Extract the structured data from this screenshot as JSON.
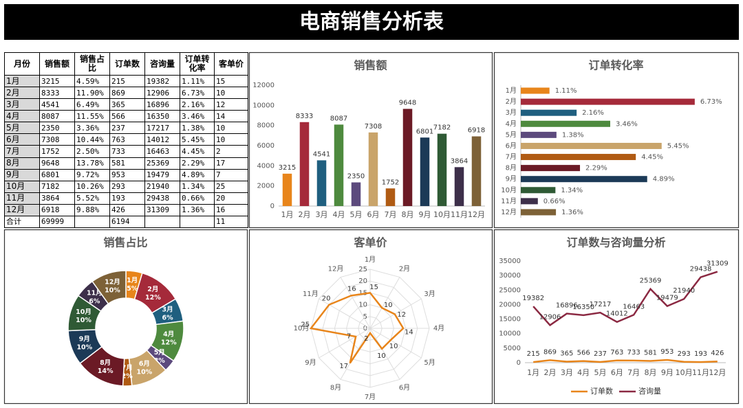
{
  "title": "电商销售分析表",
  "table": {
    "headers": [
      "月份",
      "销售额",
      "销售占比",
      "订单数",
      "咨询量",
      "订单转化率",
      "客单价"
    ],
    "rows": [
      [
        "1月",
        "3215",
        "4.59%",
        "215",
        "19382",
        "1.11%",
        "15"
      ],
      [
        "2月",
        "8333",
        "11.90%",
        "869",
        "12906",
        "6.73%",
        "10"
      ],
      [
        "3月",
        "4541",
        "6.49%",
        "365",
        "16896",
        "2.16%",
        "12"
      ],
      [
        "4月",
        "8087",
        "11.55%",
        "566",
        "16350",
        "3.46%",
        "14"
      ],
      [
        "5月",
        "2350",
        "3.36%",
        "237",
        "17217",
        "1.38%",
        "10"
      ],
      [
        "6月",
        "7308",
        "10.44%",
        "763",
        "14012",
        "5.45%",
        "10"
      ],
      [
        "7月",
        "1752",
        "2.50%",
        "733",
        "16463",
        "4.45%",
        "2"
      ],
      [
        "8月",
        "9648",
        "13.78%",
        "581",
        "25369",
        "2.29%",
        "17"
      ],
      [
        "9月",
        "6801",
        "9.72%",
        "953",
        "19479",
        "4.89%",
        "7"
      ],
      [
        "10月",
        "7182",
        "10.26%",
        "293",
        "21940",
        "1.34%",
        "25"
      ],
      [
        "11月",
        "3864",
        "5.52%",
        "193",
        "29438",
        "0.66%",
        "20"
      ],
      [
        "12月",
        "6918",
        "9.88%",
        "426",
        "31309",
        "1.36%",
        "16"
      ]
    ],
    "total": {
      "label": "合计",
      "sales": "69999",
      "orders": "6194",
      "price": "11"
    }
  },
  "chart_data": [
    {
      "type": "bar",
      "title": "销售额",
      "categories": [
        "1月",
        "2月",
        "3月",
        "4月",
        "5月",
        "6月",
        "7月",
        "8月",
        "9月",
        "10月",
        "11月",
        "12月"
      ],
      "values": [
        3215,
        8333,
        4541,
        8087,
        2350,
        7308,
        1752,
        9648,
        6801,
        7182,
        3864,
        6918
      ],
      "colors": [
        "#e8851b",
        "#a52a3a",
        "#1f5f7f",
        "#4e8a3e",
        "#5c4a7d",
        "#c9a46a",
        "#b05b13",
        "#6b1a25",
        "#1c3a57",
        "#2f5a35",
        "#3d2f4a",
        "#7d6137"
      ],
      "ylim": [
        0,
        12000
      ],
      "yticks": [
        0,
        2000,
        4000,
        6000,
        8000,
        10000,
        12000
      ],
      "grid": false
    },
    {
      "type": "barh",
      "title": "订单转化率",
      "categories": [
        "1月",
        "2月",
        "3月",
        "4月",
        "5月",
        "6月",
        "7月",
        "8月",
        "9月",
        "10月",
        "11月",
        "12月"
      ],
      "values": [
        1.11,
        6.73,
        2.16,
        3.46,
        1.38,
        5.45,
        4.45,
        2.29,
        4.89,
        1.34,
        0.66,
        1.36
      ],
      "value_labels": [
        "1.11%",
        "6.73%",
        "2.16%",
        "3.46%",
        "1.38%",
        "5.45%",
        "4.45%",
        "2.29%",
        "4.89%",
        "1.34%",
        "0.66%",
        "1.36%"
      ],
      "colors": [
        "#e8851b",
        "#a52a3a",
        "#1f5f7f",
        "#4e8a3e",
        "#5c4a7d",
        "#c9a46a",
        "#b05b13",
        "#6b1a25",
        "#1c3a57",
        "#2f5a35",
        "#3d2f4a",
        "#7d6137"
      ],
      "xlim": [
        0,
        7
      ]
    },
    {
      "type": "doughnut",
      "title": "销售占比",
      "categories": [
        "1月",
        "2月",
        "3月",
        "4月",
        "5月",
        "6月",
        "7月",
        "8月",
        "9月",
        "10月",
        "11月",
        "12月"
      ],
      "values": [
        4.59,
        11.9,
        6.49,
        11.55,
        3.36,
        10.44,
        2.5,
        13.78,
        9.72,
        10.26,
        5.52,
        9.88
      ],
      "value_labels": [
        "5%",
        "12%",
        "6%",
        "12%",
        "3%",
        "10%",
        "2%",
        "14%",
        "10%",
        "10%",
        "6%",
        "10%"
      ],
      "colors": [
        "#e8851b",
        "#a52a3a",
        "#1f5f7f",
        "#4e8a3e",
        "#5c4a7d",
        "#c9a46a",
        "#b05b13",
        "#6b1a25",
        "#1c3a57",
        "#2f5a35",
        "#3d2f4a",
        "#7d6137"
      ]
    },
    {
      "type": "radar",
      "title": "客单价",
      "categories": [
        "1月",
        "2月",
        "3月",
        "4月",
        "5月",
        "6月",
        "7月",
        "8月",
        "9月",
        "10月",
        "11月",
        "12月"
      ],
      "values": [
        15,
        10,
        12,
        14,
        10,
        10,
        2,
        17,
        7,
        25,
        20,
        16
      ],
      "color": "#e8851b",
      "rlim": [
        0,
        25
      ],
      "rticks": [
        0,
        5,
        10,
        15,
        20,
        25
      ]
    },
    {
      "type": "line",
      "title": "订单数与咨询量分析",
      "categories": [
        "1月",
        "2月",
        "3月",
        "4月",
        "5月",
        "6月",
        "7月",
        "8月",
        "9月",
        "10月",
        "11月",
        "12月"
      ],
      "series": [
        {
          "name": "订单数",
          "color": "#e8851b",
          "values": [
            215,
            869,
            365,
            566,
            237,
            763,
            733,
            581,
            953,
            293,
            193,
            426
          ]
        },
        {
          "name": "咨询量",
          "color": "#8b2942",
          "values": [
            19382,
            12906,
            16896,
            16350,
            17217,
            14012,
            16463,
            25369,
            19479,
            21940,
            29438,
            31309
          ]
        }
      ],
      "ylim": [
        0,
        35000
      ],
      "yticks": [
        0,
        5000,
        10000,
        15000,
        20000,
        25000,
        30000,
        35000
      ],
      "legend": "bottom",
      "grid": false
    }
  ]
}
